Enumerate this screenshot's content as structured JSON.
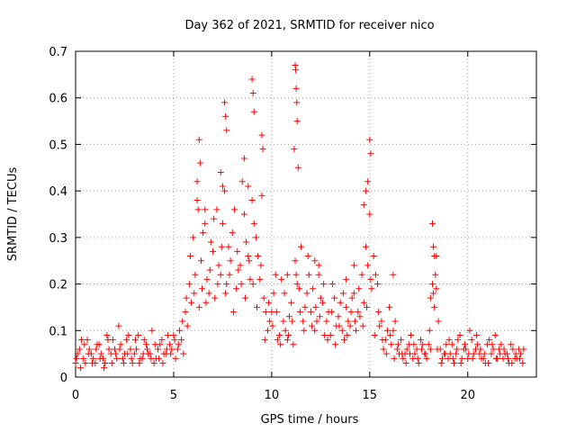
{
  "chart_data": {
    "type": "scatter",
    "title": "Day 362 of 2021, SRMTID for receiver nico",
    "xlabel": "GPS time / hours",
    "ylabel": "SRMTID / TECUs",
    "xlim": [
      0,
      23.5
    ],
    "ylim": [
      0,
      0.7
    ],
    "xticks": [
      0,
      5,
      10,
      15,
      20
    ],
    "yticks": [
      0,
      0.1,
      0.2,
      0.3,
      0.4,
      0.5,
      0.6,
      0.7
    ],
    "xtick_labels": [
      "0",
      "5",
      "10",
      "15",
      "20"
    ],
    "ytick_labels": [
      "0",
      "0.1",
      "0.2",
      "0.3",
      "0.4",
      "0.5",
      "0.6",
      "0.7"
    ],
    "grid": true,
    "marker": "+",
    "color": "#ff0000",
    "series": [
      {
        "name": "SRMTID",
        "x": [
          0.0,
          0.2,
          0.4,
          0.6,
          0.8,
          1.0,
          1.2,
          1.4,
          1.6,
          1.8,
          2.0,
          2.2,
          2.4,
          2.6,
          2.8,
          3.0,
          3.2,
          3.4,
          3.6,
          3.8,
          4.0,
          4.2,
          4.4,
          4.6,
          4.8,
          5.0,
          5.2,
          5.4,
          5.6,
          5.8,
          6.0,
          6.2,
          6.4,
          6.6,
          6.8,
          7.0,
          7.2,
          7.4,
          7.6,
          7.8,
          8.0,
          8.2,
          8.4,
          8.6,
          8.8,
          9.0,
          9.2,
          9.4,
          9.6,
          9.8,
          10.0,
          10.2,
          10.4,
          10.6,
          10.8,
          11.0,
          11.2,
          11.4,
          11.6,
          11.8,
          12.0,
          12.2,
          12.4,
          12.6,
          12.8,
          13.0,
          13.2,
          13.4,
          13.6,
          13.8,
          14.0,
          14.2,
          14.4,
          14.6,
          14.8,
          15.0,
          15.2,
          15.4,
          15.6,
          15.8,
          16.0,
          16.2,
          16.4,
          16.6,
          16.8,
          17.0,
          17.2,
          17.4,
          17.6,
          17.8,
          18.0,
          18.2,
          18.4,
          18.6,
          18.8,
          19.0,
          19.2,
          19.4,
          19.6,
          19.8,
          20.0,
          20.2,
          20.4,
          20.6,
          20.8,
          21.0,
          21.2,
          21.4,
          21.6,
          21.8,
          22.0,
          22.2,
          22.4,
          22.6,
          22.8,
          0.1,
          0.3,
          0.5,
          0.7,
          0.9,
          1.1,
          1.3,
          1.5,
          1.7,
          1.9,
          2.1,
          2.3,
          2.5,
          2.7,
          2.9,
          3.1,
          3.3,
          3.5,
          3.7,
          3.9,
          4.1,
          4.3,
          4.5,
          4.7,
          4.9,
          5.1,
          5.3,
          5.5,
          5.7,
          5.9,
          6.1,
          6.3,
          6.5,
          6.7,
          6.9,
          7.1,
          7.3,
          7.5,
          7.7,
          7.9,
          8.1,
          8.3,
          8.5,
          8.7,
          8.9,
          9.1,
          9.3,
          9.5,
          9.7,
          9.9,
          10.1,
          10.3,
          10.5,
          10.7,
          10.9,
          11.1,
          11.3,
          11.5,
          11.7,
          11.9,
          12.1,
          12.3,
          12.5,
          12.7,
          12.9,
          13.1,
          13.3,
          13.5,
          13.7,
          13.9,
          14.1,
          14.3,
          14.5,
          14.7,
          14.9,
          15.1,
          15.3,
          15.5,
          15.7,
          15.9,
          16.1,
          16.3,
          16.5,
          16.7,
          16.9,
          17.1,
          17.3,
          17.5,
          17.7,
          17.9,
          18.1,
          18.3,
          18.5,
          18.7,
          18.9,
          19.1,
          19.3,
          19.5,
          19.7,
          19.9,
          20.1,
          20.3,
          20.5,
          20.7,
          20.9,
          21.1,
          21.3,
          21.5,
          21.7,
          21.9,
          22.1,
          22.3,
          22.5,
          22.7,
          0.05,
          0.25,
          0.45,
          0.65,
          0.85,
          1.05,
          1.25,
          1.45,
          1.65,
          1.85,
          2.05,
          2.25,
          2.45,
          2.65,
          2.85,
          3.05,
          3.25,
          3.45,
          3.65,
          3.85,
          4.05,
          4.25,
          4.45,
          4.65,
          4.85,
          5.05,
          5.25,
          5.45,
          5.65,
          5.85,
          6.05,
          6.25,
          6.45,
          6.65,
          6.85,
          7.05,
          7.25,
          7.45,
          7.65,
          7.85,
          8.05,
          8.25,
          8.45,
          8.65,
          8.85,
          9.05,
          9.25,
          9.45,
          9.65,
          9.85,
          10.05,
          10.25,
          10.45,
          10.65,
          10.85,
          11.05,
          11.25,
          11.45,
          11.65,
          11.85,
          12.05,
          12.25,
          12.45,
          12.65,
          12.85,
          13.05,
          13.25,
          13.45,
          13.65,
          13.85,
          14.05,
          14.25,
          14.45,
          14.65,
          14.85,
          15.05,
          15.25,
          15.45,
          15.65,
          15.85,
          16.05,
          16.25,
          16.45,
          16.65,
          16.85,
          17.05,
          17.25,
          17.45,
          17.65,
          17.85,
          18.05,
          18.25,
          18.45,
          18.65,
          18.85,
          19.05,
          19.25,
          19.45,
          19.65,
          19.85,
          20.05,
          20.25,
          20.45,
          20.65,
          20.85,
          21.05,
          21.25,
          21.45,
          21.65,
          21.85,
          22.05,
          22.25,
          22.45,
          22.65,
          22.85,
          6.3,
          6.35,
          7.6,
          7.65,
          7.7,
          9.0,
          9.05,
          9.1,
          9.5,
          9.55,
          11.2,
          11.22,
          11.25,
          11.28,
          11.3,
          11.15,
          11.35,
          14.9,
          15.0,
          15.05,
          14.8,
          14.7,
          18.2,
          18.25,
          18.3,
          18.35,
          18.4,
          7.4,
          7.5,
          8.6,
          8.8,
          6.2,
          6.6,
          10.8,
          12.2,
          12.4,
          13.8,
          14.2,
          16.2,
          18.1
        ],
        "y": [
          0.03,
          0.06,
          0.04,
          0.08,
          0.05,
          0.03,
          0.07,
          0.04,
          0.09,
          0.05,
          0.06,
          0.11,
          0.04,
          0.08,
          0.06,
          0.05,
          0.09,
          0.04,
          0.07,
          0.05,
          0.03,
          0.06,
          0.08,
          0.05,
          0.07,
          0.09,
          0.06,
          0.08,
          0.14,
          0.2,
          0.3,
          0.38,
          0.25,
          0.33,
          0.18,
          0.27,
          0.36,
          0.22,
          0.4,
          0.28,
          0.31,
          0.19,
          0.24,
          0.35,
          0.26,
          0.38,
          0.3,
          0.21,
          0.17,
          0.1,
          0.14,
          0.22,
          0.09,
          0.12,
          0.08,
          0.16,
          0.25,
          0.19,
          0.12,
          0.18,
          0.14,
          0.1,
          0.22,
          0.16,
          0.12,
          0.09,
          0.17,
          0.13,
          0.1,
          0.15,
          0.11,
          0.18,
          0.14,
          0.22,
          0.28,
          0.35,
          0.26,
          0.2,
          0.12,
          0.08,
          0.15,
          0.1,
          0.06,
          0.08,
          0.05,
          0.07,
          0.04,
          0.06,
          0.08,
          0.05,
          0.07,
          0.2,
          0.26,
          0.06,
          0.05,
          0.04,
          0.07,
          0.05,
          0.09,
          0.06,
          0.04,
          0.08,
          0.06,
          0.05,
          0.04,
          0.07,
          0.05,
          0.09,
          0.06,
          0.04,
          0.05,
          0.07,
          0.04,
          0.06,
          0.03,
          0.05,
          0.08,
          0.03,
          0.06,
          0.04,
          0.07,
          0.05,
          0.03,
          0.06,
          0.08,
          0.04,
          0.07,
          0.05,
          0.09,
          0.03,
          0.06,
          0.04,
          0.08,
          0.05,
          0.1,
          0.04,
          0.07,
          0.05,
          0.09,
          0.06,
          0.04,
          0.1,
          0.05,
          0.11,
          0.16,
          0.22,
          0.15,
          0.31,
          0.21,
          0.29,
          0.17,
          0.24,
          0.33,
          0.2,
          0.25,
          0.36,
          0.23,
          0.42,
          0.29,
          0.21,
          0.33,
          0.26,
          0.39,
          0.14,
          0.12,
          0.18,
          0.08,
          0.21,
          0.1,
          0.13,
          0.07,
          0.2,
          0.28,
          0.15,
          0.22,
          0.19,
          0.12,
          0.17,
          0.09,
          0.14,
          0.2,
          0.11,
          0.16,
          0.08,
          0.12,
          0.17,
          0.1,
          0.13,
          0.16,
          0.24,
          0.19,
          0.22,
          0.11,
          0.06,
          0.1,
          0.07,
          0.12,
          0.05,
          0.04,
          0.06,
          0.09,
          0.05,
          0.03,
          0.07,
          0.04,
          0.06,
          0.15,
          0.12,
          0.04,
          0.07,
          0.05,
          0.03,
          0.08,
          0.04,
          0.06,
          0.1,
          0.05,
          0.07,
          0.04,
          0.03,
          0.08,
          0.06,
          0.04,
          0.07,
          0.05,
          0.03,
          0.06,
          0.04,
          0.05,
          0.04,
          0.02,
          0.07,
          0.05,
          0.03,
          0.06,
          0.04,
          0.02,
          0.08,
          0.03,
          0.05,
          0.06,
          0.03,
          0.05,
          0.04,
          0.08,
          0.03,
          0.05,
          0.06,
          0.04,
          0.07,
          0.04,
          0.03,
          0.06,
          0.05,
          0.08,
          0.07,
          0.12,
          0.17,
          0.26,
          0.18,
          0.36,
          0.19,
          0.16,
          0.23,
          0.34,
          0.2,
          0.28,
          0.18,
          0.22,
          0.14,
          0.27,
          0.2,
          0.17,
          0.25,
          0.2,
          0.15,
          0.24,
          0.08,
          0.16,
          0.11,
          0.14,
          0.07,
          0.18,
          0.09,
          0.12,
          0.22,
          0.14,
          0.1,
          0.26,
          0.11,
          0.15,
          0.13,
          0.2,
          0.08,
          0.14,
          0.07,
          0.11,
          0.18,
          0.09,
          0.14,
          0.12,
          0.19,
          0.11,
          0.15,
          0.21,
          0.09,
          0.14,
          0.08,
          0.05,
          0.09,
          0.04,
          0.07,
          0.05,
          0.03,
          0.05,
          0.07,
          0.04,
          0.06,
          0.05,
          0.1,
          0.18,
          0.06,
          0.03,
          0.05,
          0.08,
          0.04,
          0.06,
          0.03,
          0.07,
          0.05,
          0.04,
          0.09,
          0.06,
          0.05,
          0.03,
          0.07,
          0.04,
          0.05,
          0.06,
          0.04,
          0.03,
          0.05,
          0.04,
          0.06,
          0.51,
          0.46,
          0.59,
          0.56,
          0.53,
          0.64,
          0.61,
          0.57,
          0.52,
          0.49,
          0.67,
          0.66,
          0.62,
          0.59,
          0.55,
          0.49,
          0.45,
          0.42,
          0.51,
          0.48,
          0.4,
          0.37,
          0.33,
          0.28,
          0.26,
          0.22,
          0.19,
          0.44,
          0.41,
          0.47,
          0.41,
          0.42,
          0.36,
          0.22,
          0.25,
          0.24,
          0.21,
          0.24,
          0.22,
          0.17
        ]
      }
    ]
  }
}
